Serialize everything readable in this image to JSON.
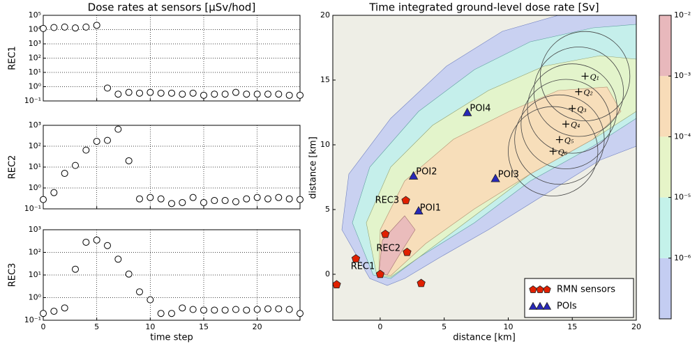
{
  "chart_data": [
    {
      "type": "scatter",
      "title": "Dose rates at sensors [μSv/hod]",
      "ylabel": "REC1",
      "log": true,
      "grid": true,
      "color": "#000000",
      "x": [
        0,
        1,
        2,
        3,
        4,
        5,
        6,
        7,
        8,
        9,
        10,
        11,
        12,
        13,
        14,
        15,
        16,
        17,
        18,
        19,
        20,
        21,
        22,
        23,
        24
      ],
      "values": [
        12000,
        14000,
        15000,
        13000,
        15000,
        20000,
        0.8,
        0.3,
        0.4,
        0.35,
        0.4,
        0.35,
        0.35,
        0.3,
        0.35,
        0.25,
        0.3,
        0.3,
        0.4,
        0.3,
        0.3,
        0.3,
        0.3,
        0.25,
        0.25
      ],
      "xlim": [
        0,
        24
      ],
      "xticks": [
        0,
        5,
        10,
        15,
        20
      ],
      "ylim": [
        0.1,
        100000
      ],
      "yticks": [
        {
          "value": 0.1,
          "label": "10⁻¹"
        },
        {
          "value": 1,
          "label": "10⁰"
        },
        {
          "value": 10,
          "label": "10¹"
        },
        {
          "value": 100,
          "label": "10²"
        },
        {
          "value": 1000,
          "label": "10³"
        },
        {
          "value": 10000,
          "label": "10⁴"
        },
        {
          "value": 100000,
          "label": "10⁵"
        }
      ]
    },
    {
      "type": "scatter",
      "ylabel": "REC2",
      "log": true,
      "grid": true,
      "color": "#000000",
      "x": [
        0,
        1,
        2,
        3,
        4,
        5,
        6,
        7,
        8,
        9,
        10,
        11,
        12,
        13,
        14,
        15,
        16,
        17,
        18,
        19,
        20,
        21,
        22,
        23,
        24
      ],
      "values": [
        0.28,
        0.6,
        5,
        12,
        65,
        170,
        190,
        650,
        20,
        0.3,
        0.35,
        0.3,
        0.18,
        0.2,
        0.35,
        0.2,
        0.25,
        0.25,
        0.22,
        0.3,
        0.35,
        0.3,
        0.35,
        0.3,
        0.28
      ],
      "xlim": [
        0,
        24
      ],
      "xticks": [
        0,
        5,
        10,
        15,
        20
      ],
      "ylim": [
        0.1,
        1000
      ],
      "yticks": [
        {
          "value": 0.1,
          "label": "10⁻¹"
        },
        {
          "value": 1,
          "label": "10⁰"
        },
        {
          "value": 10,
          "label": "10¹"
        },
        {
          "value": 100,
          "label": "10²"
        },
        {
          "value": 1000,
          "label": "10³"
        }
      ]
    },
    {
      "type": "scatter",
      "ylabel": "REC3",
      "xlabel": "time step",
      "log": true,
      "grid": true,
      "color": "#000000",
      "x": [
        0,
        1,
        2,
        3,
        4,
        5,
        6,
        7,
        8,
        9,
        10,
        11,
        12,
        13,
        14,
        15,
        16,
        17,
        18,
        19,
        20,
        21,
        22,
        23,
        24
      ],
      "values": [
        0.2,
        0.25,
        0.35,
        18,
        280,
        350,
        200,
        50,
        11,
        1.8,
        0.8,
        0.2,
        0.2,
        0.35,
        0.3,
        0.28,
        0.28,
        0.28,
        0.3,
        0.28,
        0.3,
        0.32,
        0.32,
        0.3,
        0.2
      ],
      "xlim": [
        0,
        24
      ],
      "xticks": [
        0,
        5,
        10,
        15,
        20
      ],
      "ylim": [
        0.1,
        1000
      ],
      "yticks": [
        {
          "value": 0.1,
          "label": "10⁻¹"
        },
        {
          "value": 1,
          "label": "10⁰"
        },
        {
          "value": 10,
          "label": "10¹"
        },
        {
          "value": 100,
          "label": "10²"
        },
        {
          "value": 1000,
          "label": "10³"
        }
      ]
    },
    {
      "type": "map",
      "title": "Time integrated ground-level dose rate [Sv]",
      "xlabel": "distance [km]",
      "ylabel": "distance [km]",
      "xlim": [
        -3.7,
        20
      ],
      "ylim": [
        -3.55,
        20
      ],
      "xticks": [
        0,
        5,
        10,
        15,
        20
      ],
      "yticks": [
        0,
        5,
        10,
        15,
        20
      ],
      "series": [
        {
          "name": "RMN sensors",
          "color": "#e02000",
          "marker": "pentagon",
          "x": [
            -3.4,
            -1.9,
            0,
            0.4,
            2.1,
            2.0,
            3.2
          ],
          "y": [
            -0.8,
            1.2,
            0,
            3.1,
            1.7,
            5.7,
            -0.7
          ]
        },
        {
          "name": "POIs",
          "color": "#2828b8",
          "marker": "triangle",
          "x": [
            3.0,
            2.6,
            9.0,
            6.8
          ],
          "y": [
            4.9,
            7.6,
            7.4,
            12.5
          ]
        }
      ],
      "annotations": [
        {
          "text": "REC1",
          "x": -2.3,
          "y": 0.6
        },
        {
          "text": "REC2",
          "x": -0.3,
          "y": 2.0
        },
        {
          "text": "REC3",
          "x": -0.4,
          "y": 5.7
        },
        {
          "text": "POI1",
          "x": 3.1,
          "y": 5.1
        },
        {
          "text": "POI2",
          "x": 2.8,
          "y": 7.9
        },
        {
          "text": "POI3",
          "x": 9.2,
          "y": 7.7
        },
        {
          "text": "POI4",
          "x": 7.0,
          "y": 12.8
        }
      ],
      "sources": {
        "x": [
          16,
          15.5,
          15,
          14.5,
          14,
          13.5
        ],
        "y": [
          15.3,
          14.1,
          12.8,
          11.6,
          10.4,
          9.5
        ],
        "labels": [
          "Q₁",
          "Q₂",
          "Q₃",
          "Q₄",
          "Q₅",
          "Q₆"
        ],
        "radius": 3.5
      },
      "legend": "lower right",
      "colorbar": {
        "lim": [
          1e-07,
          0.01
        ],
        "colors": [
          "#c4cdf2",
          "#c4f2ea",
          "#e6f4c8",
          "#f8dcb8",
          "#e8b8bc"
        ],
        "ticks": [
          {
            "value": 1e-06,
            "label": "10⁻⁶"
          },
          {
            "value": 1e-05,
            "label": "10⁻⁵"
          },
          {
            "value": 0.0001,
            "label": "10⁻⁴"
          },
          {
            "value": 0.001,
            "label": "10⁻³"
          },
          {
            "value": 0.01,
            "label": "10⁻²"
          }
        ]
      }
    }
  ]
}
